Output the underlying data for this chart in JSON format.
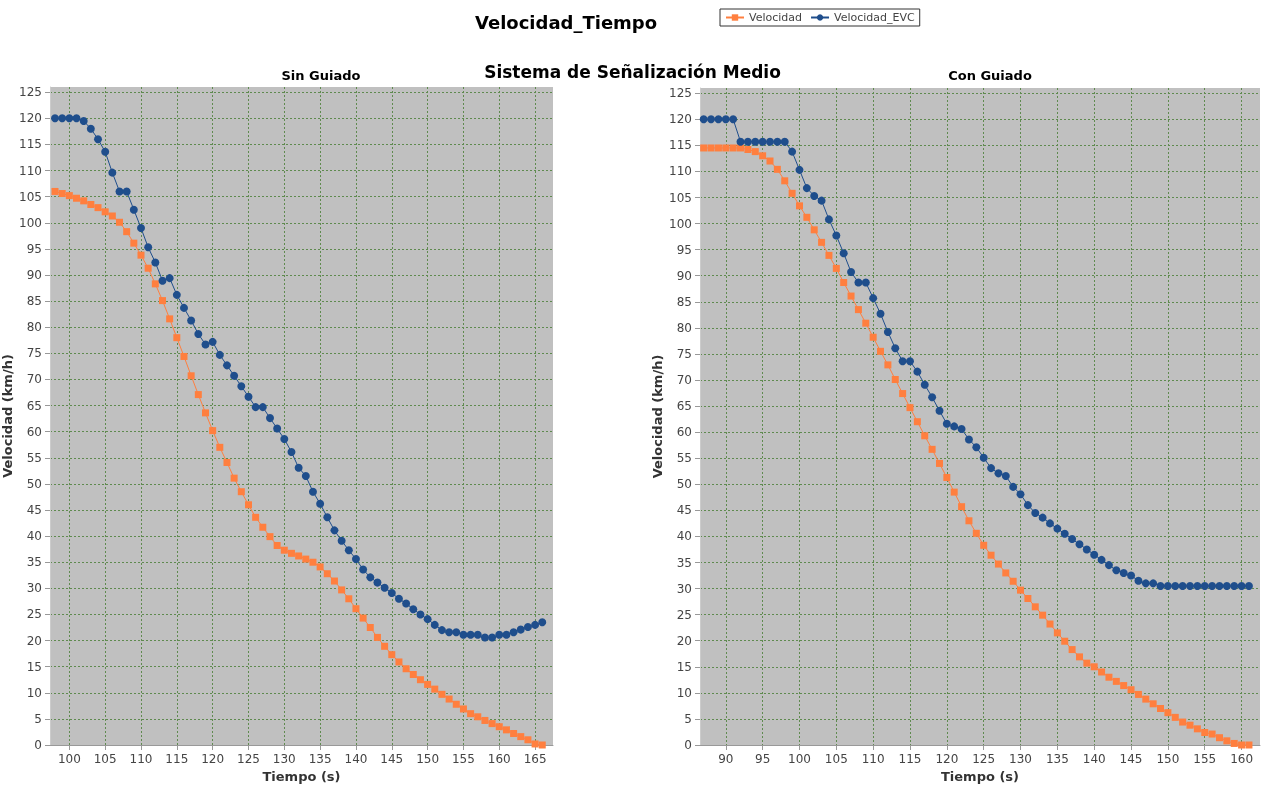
{
  "chart_data": [
    {
      "type": "other",
      "title": "Velocidad_Tiempo",
      "subtitle": "Sistema de Señalización Medio"
    },
    {
      "type": "line",
      "title": "Sin Guiado",
      "xlabel": "Tiempo (s)",
      "ylabel": "Velocidad (km/h)",
      "xlim": [
        97.3,
        167.5
      ],
      "ylim": [
        0,
        126
      ],
      "xticks": [
        100,
        105,
        110,
        115,
        120,
        125,
        130,
        135,
        140,
        145,
        150,
        155,
        160,
        165
      ],
      "yticks": [
        0,
        5,
        10,
        15,
        20,
        25,
        30,
        35,
        40,
        45,
        50,
        55,
        60,
        65,
        70,
        75,
        80,
        85,
        90,
        95,
        100,
        105,
        110,
        115,
        120,
        125
      ],
      "grid": true,
      "legend": "top",
      "line_style": "solid",
      "x": [
        98,
        99,
        100,
        101,
        102,
        103,
        104,
        105,
        106,
        107,
        108,
        109,
        110,
        111,
        112,
        113,
        114,
        115,
        116,
        117,
        118,
        119,
        120,
        121,
        122,
        123,
        124,
        125,
        126,
        127,
        128,
        129,
        130,
        131,
        132,
        133,
        134,
        135,
        136,
        137,
        138,
        139,
        140,
        141,
        142,
        143,
        144,
        145,
        146,
        147,
        148,
        149,
        150,
        151,
        152,
        153,
        154,
        155,
        156,
        157,
        158,
        159,
        160,
        161,
        162,
        163,
        164,
        165,
        166
      ],
      "series": [
        {
          "name": "Velocidad",
          "color": "#ff7f3f",
          "marker": "square",
          "values": [
            106,
            105.6,
            105.2,
            104.7,
            104.2,
            103.5,
            102.9,
            102.1,
            101.3,
            100.1,
            98.3,
            96.1,
            93.8,
            91.3,
            88.3,
            85.1,
            81.6,
            78.0,
            74.4,
            70.7,
            67.1,
            63.6,
            60.2,
            57.0,
            54.1,
            51.1,
            48.5,
            46.0,
            43.6,
            41.7,
            39.9,
            38.2,
            37.3,
            36.7,
            36.2,
            35.6,
            35.0,
            34.1,
            32.8,
            31.4,
            29.7,
            28.0,
            26.1,
            24.3,
            22.5,
            20.6,
            18.9,
            17.3,
            15.9,
            14.6,
            13.5,
            12.5,
            11.6,
            10.7,
            9.7,
            8.8,
            7.8,
            6.9,
            6.0,
            5.4,
            4.7,
            4.1,
            3.5,
            2.9,
            2.2,
            1.6,
            1.0,
            0.2,
            0
          ]
        },
        {
          "name": "Velocidad_EVC",
          "color": "#1f4e8c",
          "marker": "circle",
          "values": [
            120,
            120,
            120,
            120,
            119.5,
            118,
            116,
            113.6,
            109.6,
            106,
            106,
            102.5,
            99,
            95.3,
            92.4,
            88.9,
            89.4,
            86.2,
            83.7,
            81.3,
            78.7,
            76.7,
            77.2,
            74.7,
            72.7,
            70.7,
            68.7,
            66.7,
            64.7,
            64.7,
            62.6,
            60.6,
            58.6,
            56.1,
            53.1,
            51.5,
            48.5,
            46.2,
            43.6,
            41.1,
            39.1,
            37.3,
            35.6,
            33.6,
            32.1,
            31.1,
            30.1,
            29.1,
            28.0,
            27.1,
            26.0,
            25.0,
            24.1,
            23.0,
            22.0,
            21.6,
            21.6,
            21.1,
            21.1,
            21.1,
            20.6,
            20.6,
            21.1,
            21.1,
            21.6,
            22.1,
            22.6,
            23.0,
            23.5
          ]
        }
      ]
    },
    {
      "type": "line",
      "title": "Con Guiado",
      "xlabel": "Tiempo (s)",
      "ylabel": "Velocidad (km/h)",
      "xlim": [
        86.5,
        162.5
      ],
      "ylim": [
        0,
        126
      ],
      "xticks": [
        90,
        95,
        100,
        105,
        110,
        115,
        120,
        125,
        130,
        135,
        140,
        145,
        150,
        155,
        160
      ],
      "yticks": [
        0,
        5,
        10,
        15,
        20,
        25,
        30,
        35,
        40,
        45,
        50,
        55,
        60,
        65,
        70,
        75,
        80,
        85,
        90,
        95,
        100,
        105,
        110,
        115,
        120,
        125
      ],
      "grid": true,
      "legend": "top",
      "line_style": "solid",
      "x": [
        87,
        88,
        89,
        90,
        91,
        92,
        93,
        94,
        95,
        96,
        97,
        98,
        99,
        100,
        101,
        102,
        103,
        104,
        105,
        106,
        107,
        108,
        109,
        110,
        111,
        112,
        113,
        114,
        115,
        116,
        117,
        118,
        119,
        120,
        121,
        122,
        123,
        124,
        125,
        126,
        127,
        128,
        129,
        130,
        131,
        132,
        133,
        134,
        135,
        136,
        137,
        138,
        139,
        140,
        141,
        142,
        143,
        144,
        145,
        146,
        147,
        148,
        149,
        150,
        151,
        152,
        153,
        154,
        155,
        156,
        157,
        158,
        159,
        160,
        161
      ],
      "series": [
        {
          "name": "Velocidad",
          "color": "#ff7f3f",
          "marker": "square",
          "values": [
            114.5,
            114.5,
            114.5,
            114.5,
            114.5,
            114.5,
            114.2,
            113.8,
            113.0,
            112.0,
            110.4,
            108.2,
            105.8,
            103.4,
            101.2,
            98.8,
            96.4,
            93.9,
            91.4,
            88.7,
            86.1,
            83.5,
            80.9,
            78.2,
            75.5,
            72.9,
            70.1,
            67.4,
            64.7,
            62.0,
            59.3,
            56.7,
            54.0,
            51.3,
            48.5,
            45.7,
            43.0,
            40.6,
            38.3,
            36.4,
            34.7,
            33.0,
            31.4,
            29.7,
            28.1,
            26.5,
            24.9,
            23.2,
            21.5,
            19.9,
            18.3,
            16.9,
            15.7,
            15.0,
            14.0,
            13.0,
            12.2,
            11.4,
            10.6,
            9.7,
            8.8,
            7.9,
            7.0,
            6.2,
            5.3,
            4.4,
            3.8,
            3.1,
            2.4,
            2.1,
            1.4,
            0.8,
            0.3,
            0,
            0
          ]
        },
        {
          "name": "Velocidad_EVC",
          "color": "#1f4e8c",
          "marker": "circle",
          "values": [
            120,
            120,
            120,
            120,
            120,
            115.7,
            115.7,
            115.7,
            115.7,
            115.7,
            115.7,
            115.7,
            113.8,
            110.3,
            106.8,
            105.3,
            104.4,
            100.8,
            97.7,
            94.3,
            90.7,
            88.7,
            88.7,
            85.7,
            82.7,
            79.2,
            76.1,
            73.6,
            73.6,
            71.6,
            69.1,
            66.7,
            64.1,
            61.6,
            61.1,
            60.6,
            58.6,
            57.1,
            55.1,
            53.1,
            52.1,
            51.6,
            49.5,
            48.1,
            46.0,
            44.5,
            43.6,
            42.5,
            41.5,
            40.5,
            39.5,
            38.5,
            37.5,
            36.5,
            35.5,
            34.5,
            33.5,
            33.0,
            32.5,
            31.5,
            31.0,
            31.0,
            30.5,
            30.5,
            30.5,
            30.5,
            30.5,
            30.5,
            30.5,
            30.5,
            30.5,
            30.5,
            30.5,
            30.5,
            30.5
          ]
        }
      ]
    }
  ]
}
